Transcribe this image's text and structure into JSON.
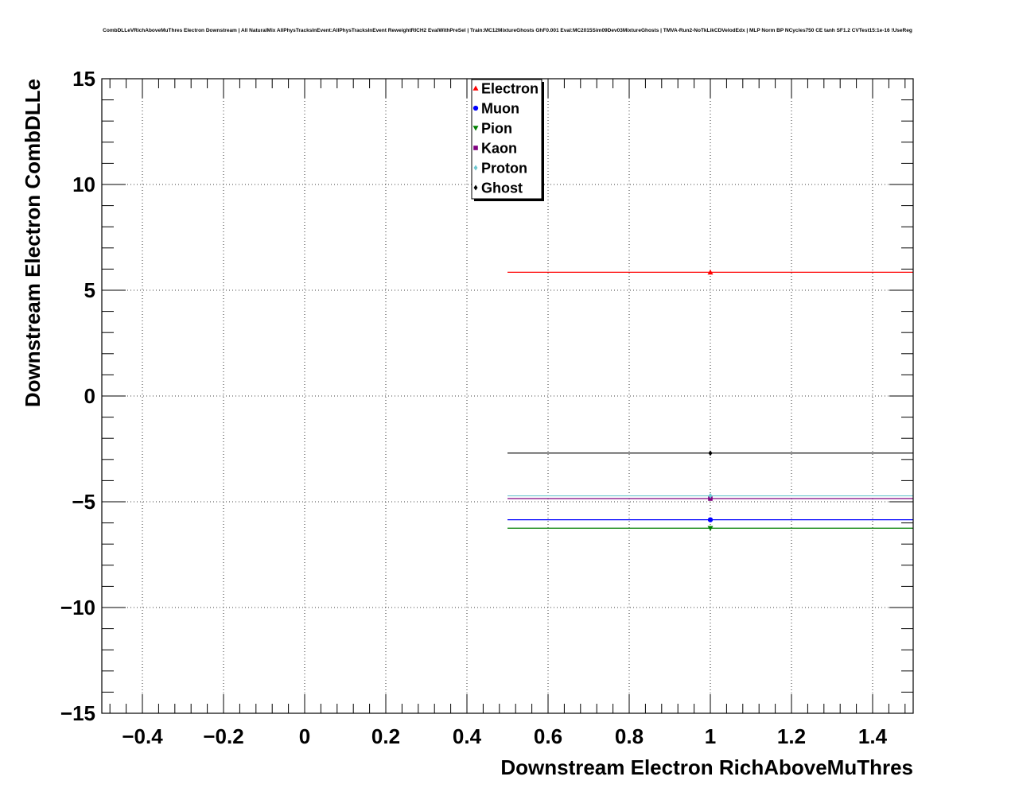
{
  "chart_data": {
    "type": "scatter",
    "title": "CombDLLeVRichAboveMuThres Electron Downstream | All NaturalMix AllPhysTracksInEvent:AllPhysTracksInEvent ReweightRICH2 EvalWithPreSel | Train:MC12MixtureGhosts GhF0.001 Eval:MC2015Sim09Dev03MixtureGhosts | TMVA-Run2-NoTkLikCDVelodEdx | MLP Norm BP NCycles750 CE tanh SF1.2 CVTest15:1e-16 !UseReg",
    "xlabel": "Downstream Electron RichAboveMuThres",
    "ylabel": "Downstream Electron CombDLLe",
    "xlim": [
      -0.5,
      1.5
    ],
    "ylim": [
      -15,
      15
    ],
    "x_ticks": [
      -0.4,
      -0.2,
      0,
      0.2,
      0.4,
      0.6,
      0.8,
      1,
      1.2,
      1.4
    ],
    "x_tick_labels": [
      "−0.4",
      "−0.2",
      "0",
      "0.2",
      "0.4",
      "0.6",
      "0.8",
      "1",
      "1.2",
      "1.4"
    ],
    "y_ticks": [
      -15,
      -10,
      -5,
      0,
      5,
      10,
      15
    ],
    "y_tick_labels": [
      "−15",
      "−10",
      "−5",
      "0",
      "5",
      "10",
      "15"
    ],
    "grid": true,
    "legend_position": "top-center",
    "series": [
      {
        "name": "Electron",
        "color": "#ff0000",
        "marker": "triangle-up",
        "x": 1,
        "y": 5.85,
        "xerr": [
          0.5,
          1.5
        ]
      },
      {
        "name": "Muon",
        "color": "#0000ff",
        "marker": "circle",
        "x": 1,
        "y": -5.85,
        "xerr": [
          0.5,
          1.5
        ]
      },
      {
        "name": "Pion",
        "color": "#008000",
        "marker": "triangle-down",
        "x": 1,
        "y": -6.25,
        "xerr": [
          0.5,
          1.5
        ]
      },
      {
        "name": "Kaon",
        "color": "#800080",
        "marker": "square",
        "x": 1,
        "y": -4.85,
        "xerr": [
          0.5,
          1.5
        ]
      },
      {
        "name": "Proton",
        "color": "#6ec8d0",
        "marker": "diamond",
        "x": 1,
        "y": -4.72,
        "xerr": [
          0.5,
          1.5
        ]
      },
      {
        "name": "Ghost",
        "color": "#000000",
        "marker": "diamond",
        "x": 1,
        "y": -2.7,
        "xerr": [
          0.5,
          1.5
        ]
      }
    ]
  }
}
